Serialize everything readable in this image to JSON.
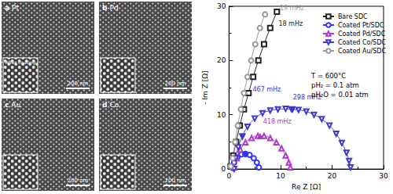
{
  "panels": [
    {
      "letter": "a",
      "metal": "Pt",
      "scale_bar": "200 nm",
      "inset_label": "After coating"
    },
    {
      "letter": "b",
      "metal": "Pd",
      "scale_bar": "200 nm"
    },
    {
      "letter": "c",
      "metal": "Au",
      "scale_bar": "200 nm"
    },
    {
      "letter": "d",
      "metal": "Co",
      "scale_bar": "200 nm"
    }
  ],
  "chart_data": {
    "type": "scatter",
    "x_label": "Re Z [Ω]",
    "y_label": "- Im Z [Ω]",
    "xlim": [
      0,
      30
    ],
    "xticks": [
      0,
      10,
      20,
      30
    ],
    "ylim": [
      0,
      30
    ],
    "yticks": [
      0,
      10,
      20,
      30
    ],
    "grid": false,
    "legend": "upper right",
    "conditions": [
      "T = 600°C",
      "pH₂ = 0.1 atm",
      "pH₂O = 0.01 atm"
    ],
    "series": [
      {
        "name": "Bare SDC",
        "color": "#222222",
        "marker": "square",
        "line_style": "solid",
        "x": [
          0.3,
          0.8,
          1.4,
          2.1,
          2.9,
          3.8,
          4.7,
          5.7,
          6.8,
          8.0,
          9.3
        ],
        "values": [
          0.5,
          2.5,
          5,
          8,
          11,
          14,
          17,
          20,
          23,
          26,
          29
        ]
      },
      {
        "name": "Coated Pt/SDC",
        "color": "#3333ff",
        "marker": "circle",
        "line_style": "solid",
        "x": [
          0.7,
          1.0,
          1.6,
          2.4,
          3.2,
          4.0,
          4.8,
          5.4,
          5.8
        ],
        "values": [
          0.2,
          1.2,
          2.1,
          2.7,
          2.8,
          2.6,
          2.0,
          1.2,
          0.3
        ]
      },
      {
        "name": "Coated Pd/SDC",
        "color": "#b03acc",
        "marker": "triangle",
        "line_style": "solid",
        "x": [
          1.0,
          1.5,
          2.2,
          3.2,
          4.4,
          5.6,
          6.8,
          8.0,
          9.2,
          10.2,
          11.0,
          11.6,
          11.9
        ],
        "values": [
          0.3,
          2.0,
          3.6,
          4.9,
          5.7,
          6.1,
          6.1,
          5.7,
          4.9,
          3.8,
          2.5,
          1.2,
          0.3
        ]
      },
      {
        "name": "Coated Co/SDC",
        "color": "#3a3ad0",
        "marker": "triangle-down",
        "line_style": "solid",
        "x": [
          1.0,
          1.3,
          1.8,
          2.6,
          3.6,
          5.0,
          6.5,
          8.0,
          9.5,
          11.0,
          12.3,
          13.5,
          15.0,
          16.5,
          18.0,
          19.5,
          20.8,
          21.9,
          22.8,
          23.3,
          23.6
        ],
        "values": [
          0.0,
          2.0,
          4.0,
          6.0,
          7.8,
          9.3,
          10.3,
          10.8,
          11.0,
          11.1,
          11.0,
          10.9,
          10.6,
          10.0,
          9.2,
          8.0,
          6.5,
          4.8,
          3.0,
          1.5,
          0.3
        ]
      },
      {
        "name": "Coated Au/SDC",
        "color": "#999999",
        "marker": "circle",
        "line_style": "solid",
        "x": [
          0.3,
          0.7,
          1.2,
          1.7,
          2.3,
          2.9,
          3.6,
          4.3,
          5.1,
          6.0,
          7.0
        ],
        "values": [
          0.5,
          2,
          5,
          8,
          11,
          14,
          17,
          20,
          23,
          26,
          28.5
        ]
      }
    ],
    "annotations": [
      {
        "text": "19 mHz",
        "series": "Coated Au/SDC",
        "x": 7.0,
        "y": 28.5,
        "marker": "none"
      },
      {
        "text": "18 mHz",
        "series": "Bare SDC",
        "x": 8.3,
        "y": 26.5,
        "marker": "none"
      },
      {
        "text": "467 mHz",
        "series": "Coated Co/SDC",
        "x": 2.6,
        "y": 6.0,
        "marker": "filled"
      },
      {
        "text": "298 mHz",
        "series": "Coated Co/SDC",
        "x": 12.1,
        "y": 10.9,
        "marker": "filled"
      },
      {
        "text": "418 mHz",
        "series": "Coated Pd/SDC",
        "x": 6.0,
        "y": 6.1,
        "marker": "filled"
      },
      {
        "text": "",
        "series": "Coated Pt/SDC",
        "x": 3.2,
        "y": 2.8,
        "marker": "filled"
      }
    ]
  }
}
